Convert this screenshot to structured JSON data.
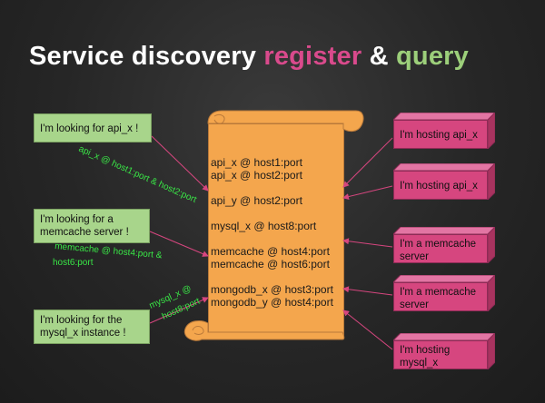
{
  "title": {
    "part1": "Service discovery ",
    "part2": "register",
    "part3": " & ",
    "part4": "query"
  },
  "colors": {
    "background": "#262626",
    "title_white": "#ffffff",
    "title_register": "#d94a8c",
    "title_query": "#9ccf7a",
    "registry_scroll": "#f4a64d",
    "client_note": "#a8d58b",
    "service_box": "#d6467f",
    "arrow": "#d6467f",
    "response_text": "#39e646"
  },
  "registry": {
    "entries": [
      "api_x @ host1:port",
      "api_x @ host2:port",
      "",
      "api_y @ host2:port",
      "",
      "mysql_x @ host8:port",
      "",
      "memcache @ host4:port",
      "memcache @ host6:port",
      "",
      "mongodb_x @ host3:port",
      "mongodb_y @ host4:port"
    ]
  },
  "clients": [
    {
      "label": "I'm looking for api_x !"
    },
    {
      "label": "I'm looking for a memcache server !"
    },
    {
      "label": "I'm looking for the mysql_x instance !"
    }
  ],
  "services": [
    {
      "label": "I'm hosting api_x"
    },
    {
      "label": "I'm hosting api_x"
    },
    {
      "label": "I'm a memcache server"
    },
    {
      "label": "I'm a memcache server"
    },
    {
      "label": "I'm hosting mysql_x"
    }
  ],
  "responses": [
    {
      "text": "api_x @ host1:port & host2:port"
    },
    {
      "text_line1": "memcache @ host4:port &",
      "text_line2": "host6:port"
    },
    {
      "text_line1": "mysql_x @",
      "text_line2": "host8:port"
    }
  ]
}
